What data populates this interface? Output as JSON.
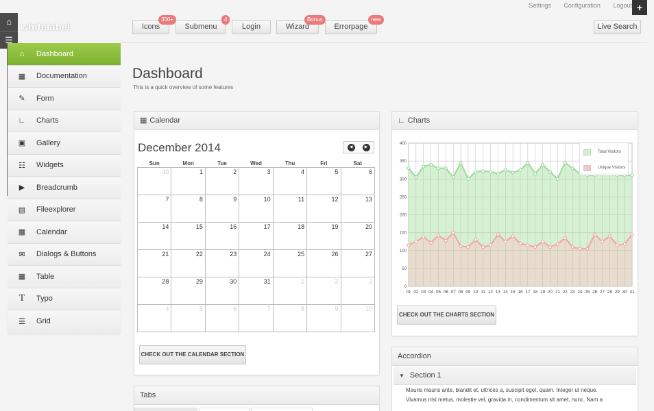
{
  "header": {
    "logo": "whitelabel",
    "links": [
      "Settings",
      "Configuration",
      "Logout"
    ],
    "plus_icon": "+",
    "live_search": "Live Search"
  },
  "topnav": [
    {
      "label": "Icons",
      "badge": "300+"
    },
    {
      "label": "Submenu",
      "badge": "4"
    },
    {
      "label": "Login",
      "badge": ""
    },
    {
      "label": "Wizard",
      "badge": "Bonus"
    },
    {
      "label": "Errorpage",
      "badge": "new"
    }
  ],
  "sidebar": {
    "items": [
      {
        "label": "Dashboard",
        "icon": "home-icon"
      },
      {
        "label": "Documentation",
        "icon": "book-icon"
      },
      {
        "label": "Form",
        "icon": "edit-icon"
      },
      {
        "label": "Charts",
        "icon": "chart-icon"
      },
      {
        "label": "Gallery",
        "icon": "gallery-icon"
      },
      {
        "label": "Widgets",
        "icon": "widgets-icon"
      },
      {
        "label": "Breadcrumb",
        "icon": "breadcrumb-icon"
      },
      {
        "label": "Fileexplorer",
        "icon": "folder-icon"
      },
      {
        "label": "Calendar",
        "icon": "calendar-icon"
      },
      {
        "label": "Dialogs & Buttons",
        "icon": "chat-icon"
      },
      {
        "label": "Table",
        "icon": "table-icon"
      },
      {
        "label": "Typo",
        "icon": "typo-icon"
      },
      {
        "label": "Grid",
        "icon": "grid-icon"
      }
    ]
  },
  "page": {
    "title": "Dashboard",
    "subtitle": "This is a quick overview of some features"
  },
  "calendar": {
    "panel_title": "Calendar",
    "month": "December 2014",
    "weekdays": [
      "Sun",
      "Mon",
      "Tue",
      "Wed",
      "Thu",
      "Fri",
      "Sat"
    ],
    "weeks": [
      [
        {
          "d": "30",
          "m": true
        },
        {
          "d": "1"
        },
        {
          "d": "2"
        },
        {
          "d": "3"
        },
        {
          "d": "4"
        },
        {
          "d": "5"
        },
        {
          "d": "6"
        }
      ],
      [
        {
          "d": "7"
        },
        {
          "d": "8"
        },
        {
          "d": "9"
        },
        {
          "d": "10"
        },
        {
          "d": "11"
        },
        {
          "d": "12"
        },
        {
          "d": "13"
        }
      ],
      [
        {
          "d": "14"
        },
        {
          "d": "15"
        },
        {
          "d": "16"
        },
        {
          "d": "17"
        },
        {
          "d": "18"
        },
        {
          "d": "19"
        },
        {
          "d": "20"
        }
      ],
      [
        {
          "d": "21"
        },
        {
          "d": "22"
        },
        {
          "d": "23"
        },
        {
          "d": "24"
        },
        {
          "d": "25"
        },
        {
          "d": "26"
        },
        {
          "d": "27"
        }
      ],
      [
        {
          "d": "28"
        },
        {
          "d": "29"
        },
        {
          "d": "30"
        },
        {
          "d": "31"
        },
        {
          "d": "1",
          "m": true
        },
        {
          "d": "2",
          "m": true
        },
        {
          "d": "3",
          "m": true
        }
      ],
      [
        {
          "d": "4",
          "m": true
        },
        {
          "d": "5",
          "m": true
        },
        {
          "d": "6",
          "m": true
        },
        {
          "d": "7",
          "m": true
        },
        {
          "d": "8",
          "m": true
        },
        {
          "d": "9",
          "m": true
        },
        {
          "d": "10",
          "m": true
        }
      ]
    ],
    "button": "CHECK OUT THE CALENDAR SECTION"
  },
  "tabs": {
    "panel_title": "Tabs"
  },
  "charts": {
    "panel_title": "Charts",
    "button": "CHECK OUT THE CHARTS SECTION"
  },
  "accordion": {
    "panel_title": "Accordion",
    "section": "Section 1",
    "body_lines": [
      "Mauris mauris ante, blandit et, ultrices a, suscipit eget, quam. Integer ut neque.",
      "Vivamus nisi metus, molestie vel, gravida in, condimentum sit amet, nunc. Nam a"
    ]
  },
  "chart_data": {
    "type": "area",
    "x": [
      "01",
      "02",
      "03",
      "04",
      "05",
      "06",
      "07",
      "08",
      "09",
      "10",
      "11",
      "12",
      "13",
      "14",
      "15",
      "16",
      "17",
      "18",
      "19",
      "20",
      "21",
      "22",
      "23",
      "24",
      "25",
      "26",
      "27",
      "28",
      "29",
      "30",
      "31"
    ],
    "ylim": [
      0,
      400
    ],
    "yticks": [
      0,
      50,
      100,
      150,
      200,
      250,
      300,
      350,
      400
    ],
    "grid": true,
    "legend_position": "top-right",
    "series": [
      {
        "name": "Total Visitors",
        "color": "#9fdc9f",
        "fill": "#d6f1d2",
        "values": [
          330,
          305,
          335,
          340,
          330,
          330,
          305,
          345,
          300,
          320,
          322,
          320,
          315,
          325,
          318,
          325,
          345,
          315,
          340,
          320,
          300,
          345,
          330,
          315,
          310,
          310,
          315,
          315,
          310,
          310,
          310
        ]
      },
      {
        "name": "Unique Visitors",
        "color": "#f2a8aa",
        "fill": "#e8dccd",
        "values": [
          115,
          125,
          138,
          122,
          142,
          128,
          150,
          112,
          110,
          130,
          110,
          115,
          145,
          125,
          140,
          120,
          115,
          110,
          125,
          110,
          118,
          135,
          110,
          105,
          105,
          145,
          125,
          140,
          115,
          118,
          145
        ]
      }
    ]
  }
}
